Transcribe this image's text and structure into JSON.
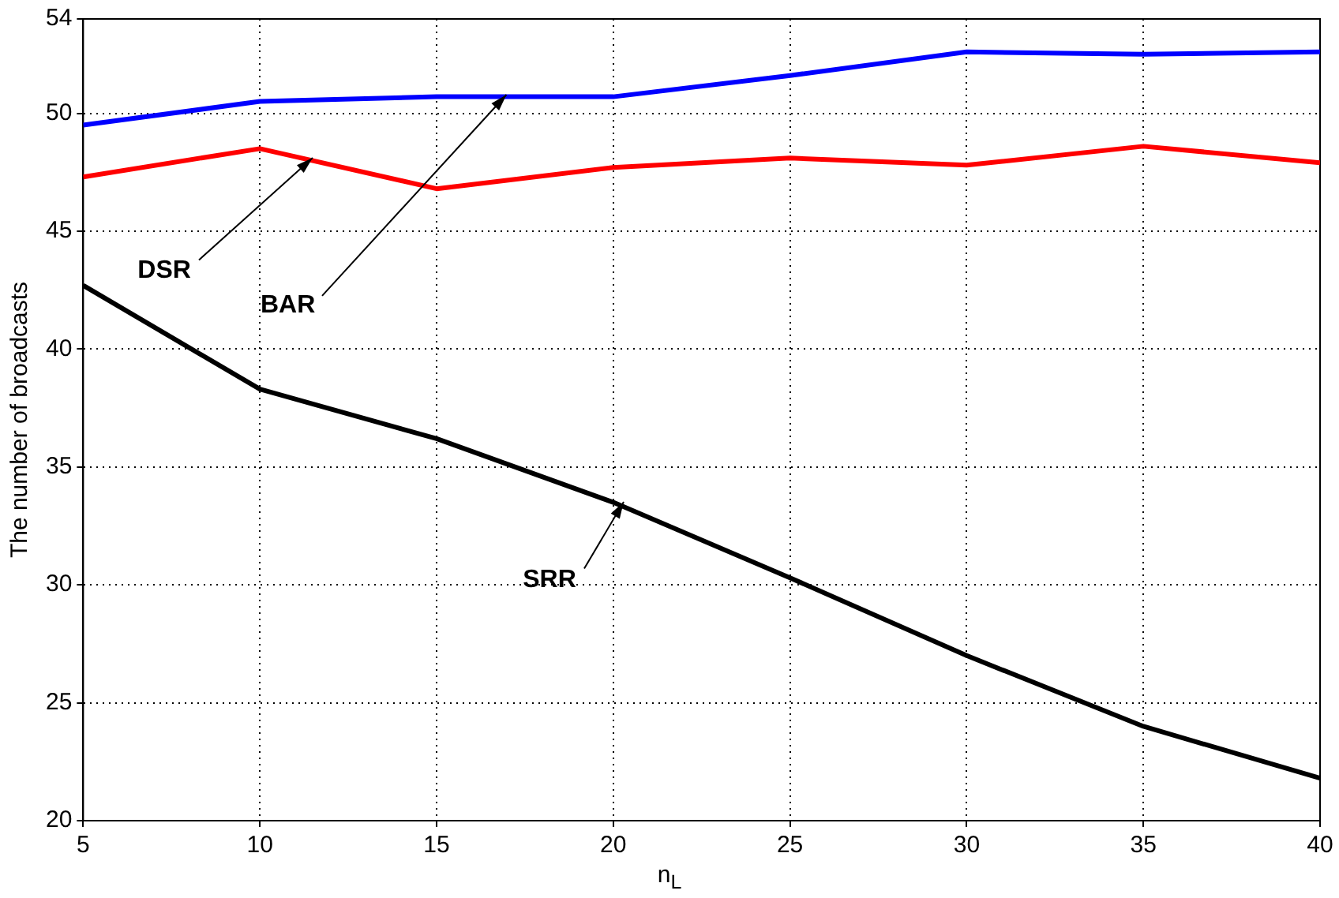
{
  "chart_data": {
    "type": "line",
    "xlabel": "n$_{L}$",
    "ylabel": "The number of broadcasts",
    "x": [
      5,
      10,
      15,
      20,
      25,
      30,
      35,
      40
    ],
    "series": [
      {
        "name": "BAR",
        "color": "#0000ff",
        "values": [
          49.5,
          50.5,
          50.7,
          50.7,
          51.6,
          52.6,
          52.5,
          52.6
        ]
      },
      {
        "name": "DSR",
        "color": "#ff0000",
        "values": [
          47.3,
          48.5,
          46.8,
          47.7,
          48.1,
          47.8,
          48.6,
          47.9
        ]
      },
      {
        "name": "SRR",
        "color": "#000000",
        "values": [
          42.7,
          38.3,
          36.2,
          33.5,
          30.3,
          27.0,
          24.0,
          21.8
        ]
      }
    ],
    "xlim": [
      5,
      40
    ],
    "xticks": [
      5,
      10,
      15,
      20,
      25,
      30,
      35,
      40
    ],
    "ylim": [
      20,
      54
    ],
    "yticks": [
      20,
      25,
      30,
      35,
      40,
      45,
      50,
      54
    ],
    "grid": true,
    "legend": false,
    "marker": "none",
    "line_style": "solid"
  }
}
